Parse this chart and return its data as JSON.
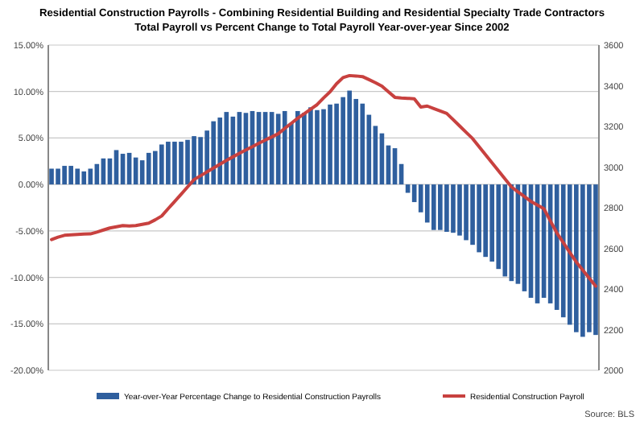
{
  "chart_data": {
    "type": "bar",
    "title": "Residential Construction Payrolls - Combining Residential Building and Residential Specialty Trade Contractors",
    "subtitle": "Total Payroll vs Percent Change to Total Payroll Year-over-year Since 2002",
    "categories": [
      null,
      null,
      null,
      null,
      null,
      null,
      null,
      null,
      null,
      null,
      null,
      null,
      null,
      null,
      null,
      null,
      null,
      null,
      null,
      null,
      null,
      null,
      null,
      null,
      null,
      null,
      null,
      null,
      null,
      null,
      null,
      null,
      null,
      null,
      null,
      null,
      null,
      null,
      null,
      null,
      null,
      null,
      null,
      null,
      null,
      null,
      null,
      null,
      null,
      null,
      null,
      null,
      null,
      null,
      null,
      null,
      null,
      null,
      null,
      null,
      null,
      null,
      null,
      null,
      null,
      null,
      null,
      null,
      null,
      null,
      null,
      null,
      null,
      null,
      null,
      null,
      null,
      null,
      null,
      null,
      null,
      null,
      null,
      null,
      null
    ],
    "series": [
      {
        "name": "Year-over-Year Percentage Change to Residential Construction Payrolls",
        "color": "#2f5f9e",
        "values": [
          1.7,
          1.7,
          2.0,
          2.0,
          1.7,
          1.4,
          1.7,
          2.2,
          2.8,
          2.8,
          3.7,
          3.3,
          3.4,
          2.9,
          2.6,
          3.4,
          3.6,
          4.3,
          4.6,
          4.6,
          4.6,
          4.8,
          5.2,
          5.1,
          5.8,
          6.8,
          7.2,
          7.8,
          7.3,
          7.8,
          7.7,
          7.9,
          7.8,
          7.8,
          7.8,
          7.6,
          7.9,
          6.6,
          7.9,
          7.7,
          8.3,
          8.0,
          8.1,
          8.6,
          8.7,
          9.4,
          10.1,
          9.2,
          8.7,
          7.5,
          6.3,
          5.5,
          4.2,
          3.9,
          2.2,
          -0.9,
          -1.9,
          -3.0,
          -4.1,
          -4.9,
          -4.9,
          -5.1,
          -5.2,
          -5.5,
          -6.0,
          -6.5,
          -7.3,
          -7.8,
          -8.3,
          -9.1,
          -9.9,
          -10.4,
          -10.7,
          -11.5,
          -12.2,
          -12.8,
          -12.2,
          -12.8,
          -13.5,
          -14.3,
          -15.1,
          -15.9,
          -16.4,
          -15.9,
          -16.2
        ]
      },
      {
        "name": "Residential Construction Payroll",
        "type": "line",
        "axis": "y2",
        "color": "#c8413f",
        "values": [
          2643,
          2655,
          2664,
          2666,
          2668,
          2670,
          2671,
          2680,
          2690,
          2700,
          2706,
          2712,
          2710,
          2712,
          2718,
          2724,
          2740,
          2759,
          2795,
          2830,
          2866,
          2902,
          2938,
          2957,
          2976,
          2995,
          3014,
          3033,
          3050,
          3067,
          3084,
          3100,
          3117,
          3133,
          3148,
          3164,
          3190,
          3215,
          3240,
          3262,
          3285,
          3307,
          3340,
          3370,
          3410,
          3440,
          3450,
          3448,
          3445,
          3430,
          3415,
          3398,
          3370,
          3343,
          3340,
          3338,
          3336,
          3295,
          3300,
          3288,
          3276,
          3264,
          3233,
          3202,
          3171,
          3140,
          3100,
          3060,
          3021,
          2981,
          2942,
          2902,
          2878,
          2855,
          2831,
          2813,
          2795,
          2735,
          2676,
          2628,
          2580,
          2533,
          2493,
          2453,
          2414
        ]
      }
    ],
    "ylim": [
      -20,
      15
    ],
    "yticks": [
      {
        "value": -20,
        "label": "-20.00%"
      },
      {
        "value": -15,
        "label": "-15.00%"
      },
      {
        "value": -10,
        "label": "-10.00%"
      },
      {
        "value": -5,
        "label": "-5.00%"
      },
      {
        "value": 0,
        "label": "0.00%"
      },
      {
        "value": 5,
        "label": "5.00%"
      },
      {
        "value": 10,
        "label": "10.00%"
      },
      {
        "value": 15,
        "label": "15.00%"
      }
    ],
    "y2lim": [
      2000,
      3600
    ],
    "y2ticks": [
      2000,
      2200,
      2400,
      2600,
      2800,
      3000,
      3200,
      3400,
      3600
    ],
    "grid": "y",
    "legend": "bottom",
    "line_style": "solid",
    "marker": "none",
    "annotations": [
      "Source: BLS"
    ]
  }
}
